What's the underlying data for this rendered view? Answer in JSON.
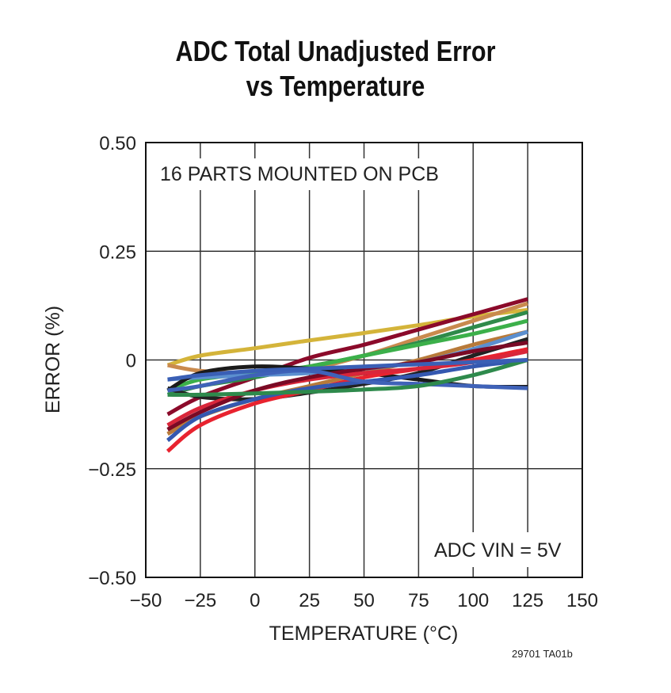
{
  "chart_data": {
    "type": "line",
    "title": [
      "ADC Total Unadjusted Error",
      "vs Temperature"
    ],
    "xlabel": "TEMPERATURE (°C)",
    "ylabel": "ERROR (%)",
    "xlim": [
      -50,
      150
    ],
    "ylim": [
      -0.5,
      0.5
    ],
    "xticks": [
      "−50",
      "−25",
      "0",
      "25",
      "50",
      "75",
      "100",
      "125",
      "150"
    ],
    "yticks": [
      "0.50",
      "0.25",
      "0",
      "−0.25",
      "−0.50"
    ],
    "grid": true,
    "annotations": [
      "16 PARTS MOUNTED ON PCB",
      "ADC VIN = 5V"
    ],
    "x": [
      -40,
      -25,
      0,
      25,
      50,
      75,
      100,
      125
    ],
    "series": [
      {
        "color": "#d4b43a",
        "values": [
          -0.012,
          0.01,
          0.027,
          0.045,
          0.062,
          0.08,
          0.1,
          0.115
        ]
      },
      {
        "color": "#8b0a2a",
        "values": [
          -0.125,
          -0.085,
          -0.04,
          0.005,
          0.035,
          0.07,
          0.105,
          0.14
        ]
      },
      {
        "color": "#c98a4e",
        "values": [
          -0.012,
          -0.025,
          -0.03,
          -0.02,
          0.01,
          0.05,
          0.09,
          0.13
        ]
      },
      {
        "color": "#b87a3a",
        "values": [
          -0.17,
          -0.13,
          -0.09,
          -0.06,
          -0.03,
          0.0,
          0.035,
          0.065
        ]
      },
      {
        "color": "#2f8a4a",
        "values": [
          -0.08,
          -0.06,
          -0.04,
          -0.015,
          0.01,
          0.04,
          0.075,
          0.11
        ]
      },
      {
        "color": "#3cb04a",
        "values": [
          -0.07,
          -0.045,
          -0.03,
          -0.015,
          0.01,
          0.035,
          0.06,
          0.09
        ]
      },
      {
        "color": "#5b8fcf",
        "values": [
          -0.045,
          -0.04,
          -0.035,
          -0.03,
          -0.02,
          -0.005,
          0.025,
          0.065
        ]
      },
      {
        "color": "#1a1a1a",
        "values": [
          -0.07,
          -0.03,
          -0.015,
          -0.02,
          -0.03,
          -0.045,
          -0.06,
          -0.062
        ]
      },
      {
        "color": "#222222",
        "values": [
          -0.065,
          -0.085,
          -0.09,
          -0.075,
          -0.055,
          -0.03,
          0.01,
          0.048
        ]
      },
      {
        "color": "#e8232f",
        "values": [
          -0.21,
          -0.15,
          -0.1,
          -0.07,
          -0.04,
          -0.02,
          0.0,
          0.025
        ]
      },
      {
        "color": "#d9263a",
        "values": [
          -0.15,
          -0.11,
          -0.07,
          -0.045,
          -0.03,
          -0.02,
          -0.005,
          0.02
        ]
      },
      {
        "color": "#7a0a25",
        "values": [
          -0.16,
          -0.12,
          -0.07,
          -0.04,
          -0.02,
          -0.005,
          0.02,
          0.04
        ]
      },
      {
        "color": "#3458b0",
        "values": [
          -0.185,
          -0.13,
          -0.09,
          -0.065,
          -0.05,
          -0.035,
          -0.015,
          0.0
        ]
      },
      {
        "color": "#3f62b8",
        "values": [
          -0.07,
          -0.06,
          -0.035,
          -0.025,
          -0.05,
          -0.055,
          -0.06,
          -0.065
        ]
      },
      {
        "color": "#2e8a4c",
        "values": [
          -0.08,
          -0.08,
          -0.077,
          -0.073,
          -0.068,
          -0.06,
          -0.035,
          0.0
        ]
      },
      {
        "color": "#3a5fb5",
        "values": [
          -0.045,
          -0.035,
          -0.025,
          -0.02,
          -0.015,
          -0.01,
          -0.005,
          0.0
        ]
      }
    ]
  },
  "figure_id": "29701 TA01b"
}
